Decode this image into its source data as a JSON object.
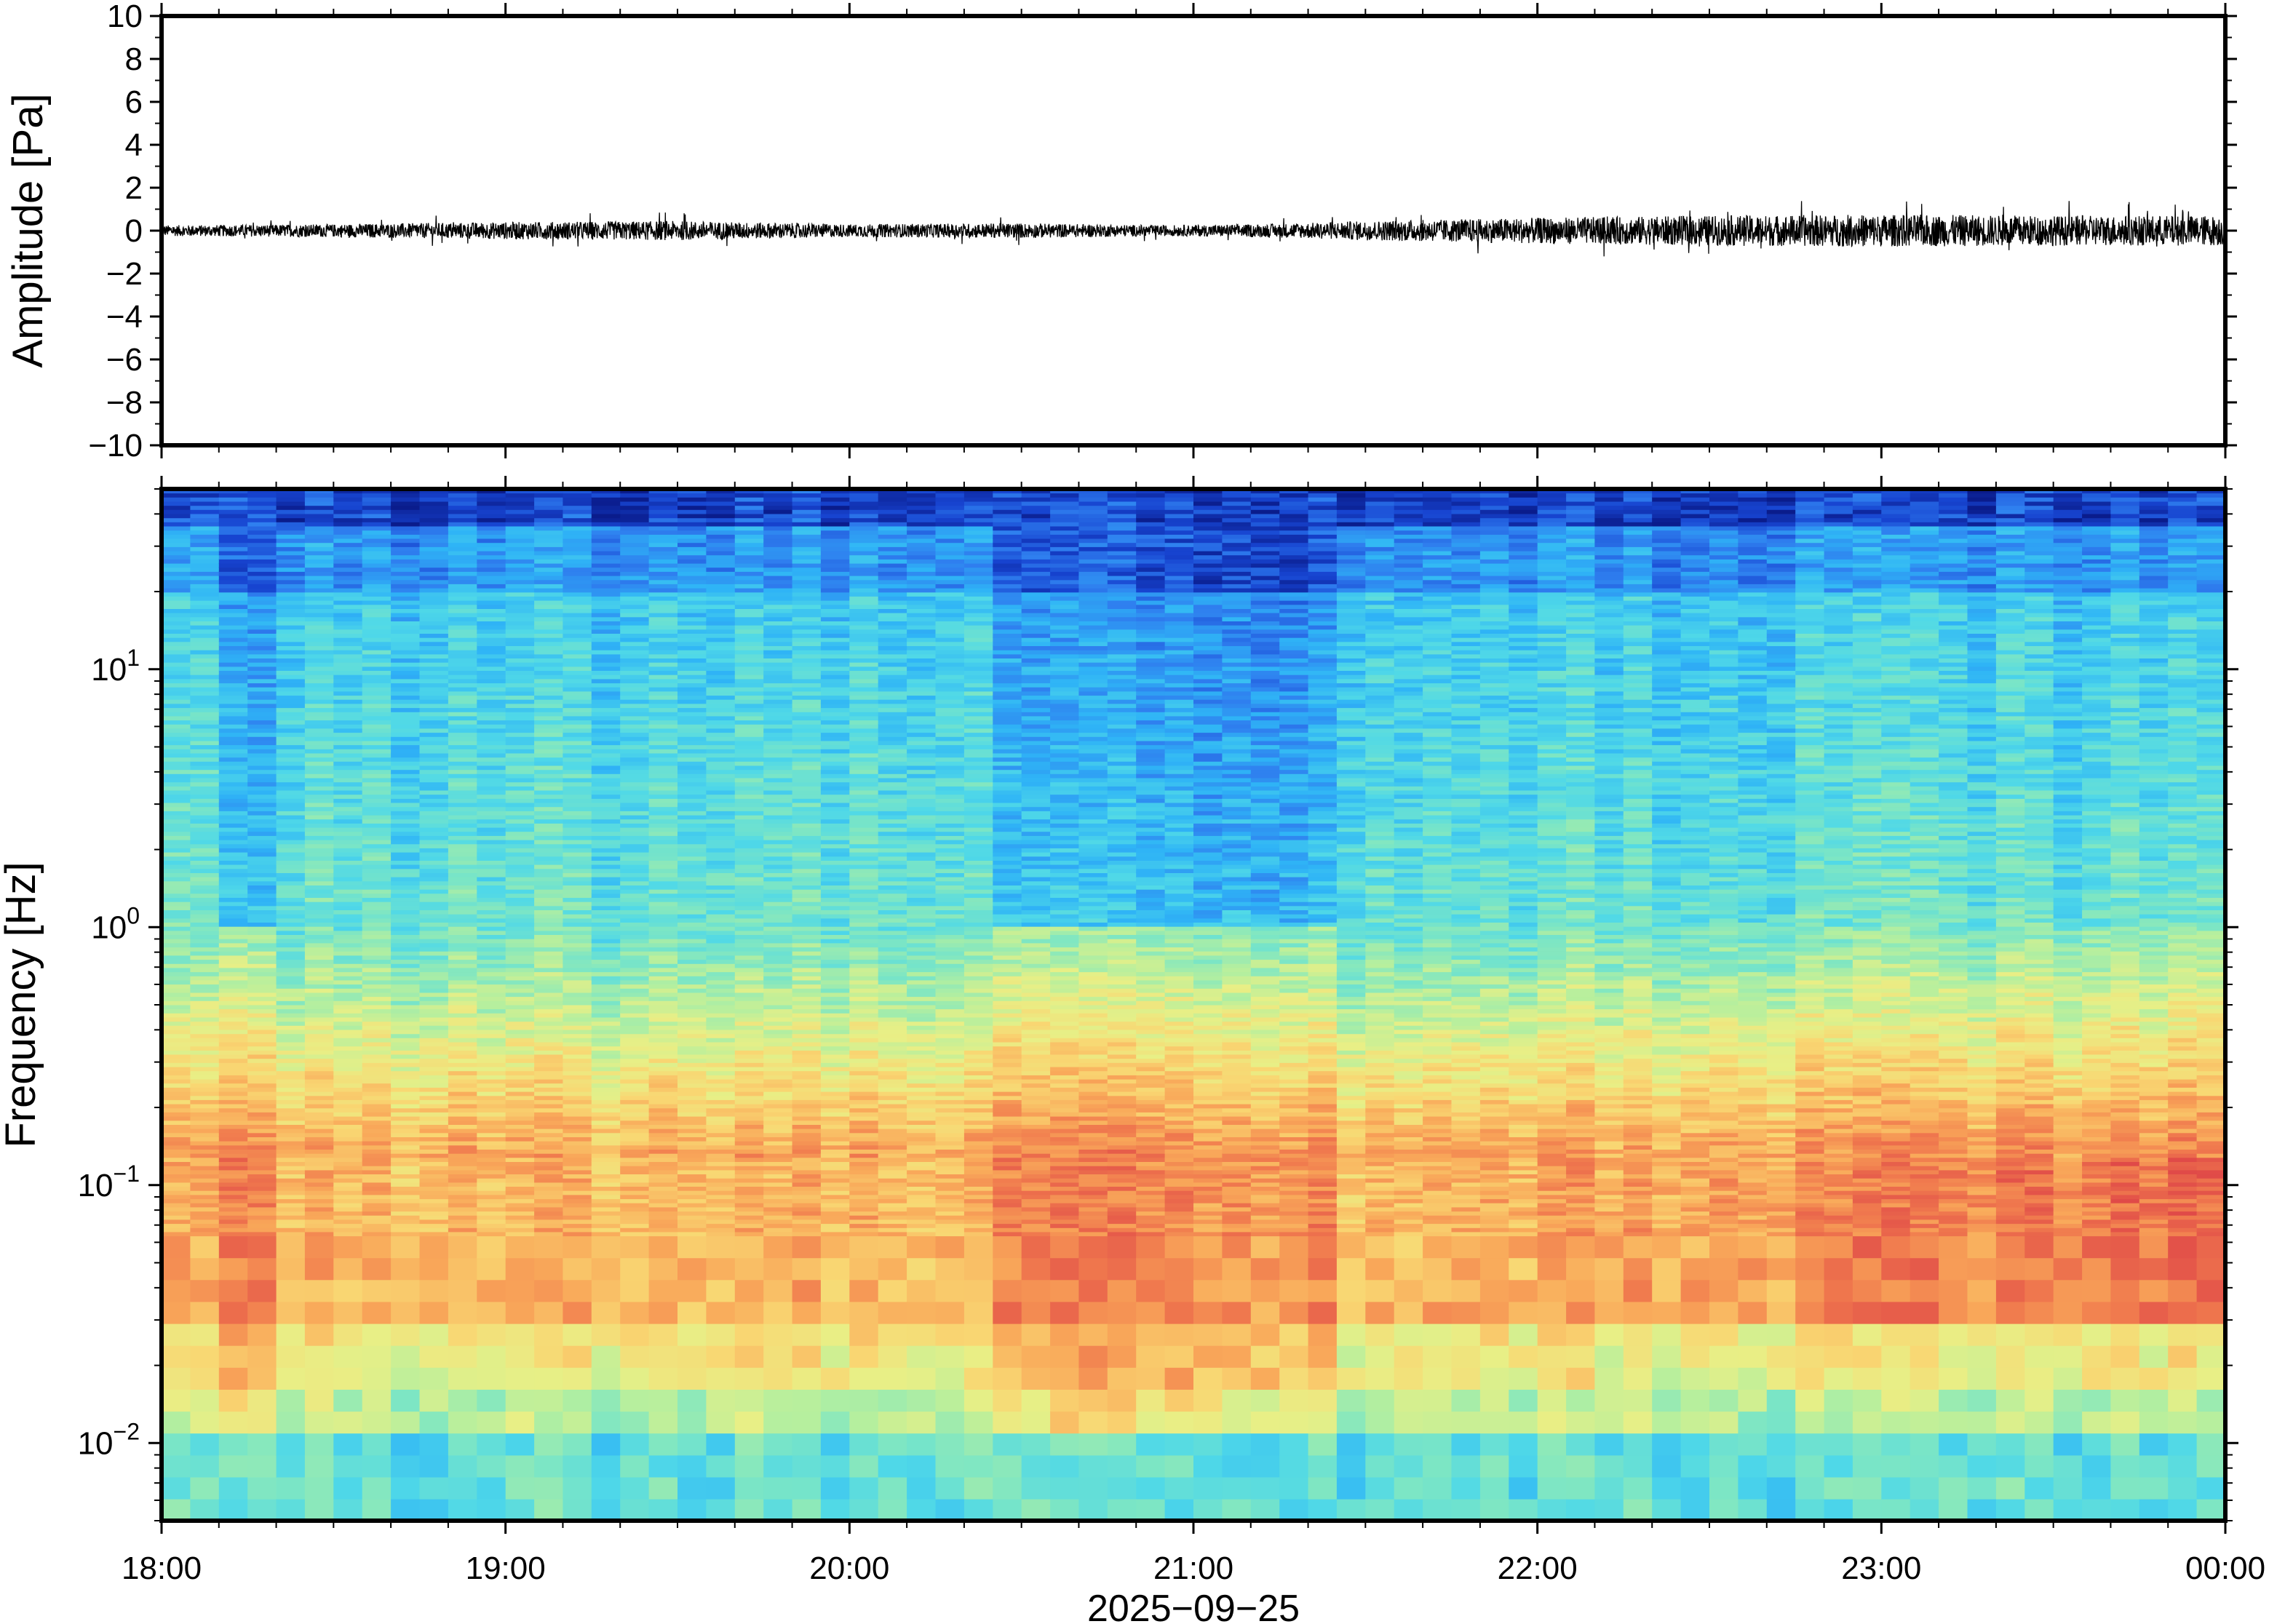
{
  "chart_data": [
    {
      "type": "line",
      "name": "waveform",
      "ylabel": "Amplitude [Pa]",
      "xlabel": "",
      "ylim": [
        -10,
        10
      ],
      "yticks": [
        10,
        8,
        6,
        4,
        2,
        0,
        -2,
        -4,
        -6,
        -8,
        -10
      ],
      "ytick_labels": [
        "10",
        "8",
        "6",
        "4",
        "2",
        "0",
        "−2",
        "−4",
        "−6",
        "−8",
        "−10"
      ],
      "xlim": [
        "18:00",
        "00:00"
      ],
      "envelope": {
        "hours": [
          18.0,
          18.5,
          19.0,
          19.5,
          20.0,
          20.5,
          20.9,
          21.2,
          21.5,
          22.0,
          22.5,
          23.0,
          23.5,
          24.0
        ],
        "half_amplitude_pa": [
          0.25,
          0.3,
          0.4,
          0.45,
          0.3,
          0.35,
          0.25,
          0.3,
          0.45,
          0.6,
          0.7,
          0.75,
          0.7,
          0.7
        ]
      },
      "grid": false
    },
    {
      "type": "heatmap",
      "name": "spectrogram",
      "ylabel": "Frequency [Hz]",
      "xlabel": "2025−09−25",
      "y_scale": "log",
      "ylim": [
        0.005,
        50
      ],
      "yticks": [
        {
          "value": 10,
          "base": "10",
          "exp": "1"
        },
        {
          "value": 1,
          "base": "10",
          "exp": "0"
        },
        {
          "value": 0.1,
          "base": "10",
          "exp": "−1"
        },
        {
          "value": 0.01,
          "base": "10",
          "exp": "−2"
        }
      ],
      "xticks": [
        "18:00",
        "19:00",
        "20:00",
        "21:00",
        "22:00",
        "23:00",
        "00:00"
      ],
      "colormap": [
        "#0a1c8c",
        "#1744d0",
        "#2f7fef",
        "#2fb4f6",
        "#4fd8e8",
        "#7de6c4",
        "#b6ef9e",
        "#e8ef86",
        "#f9d672",
        "#f9a95a",
        "#f07a4e",
        "#e04a48"
      ],
      "quiet_intervals": [
        [
          18.2,
          18.35
        ],
        [
          20.45,
          21.4
        ]
      ],
      "grid": false
    }
  ]
}
